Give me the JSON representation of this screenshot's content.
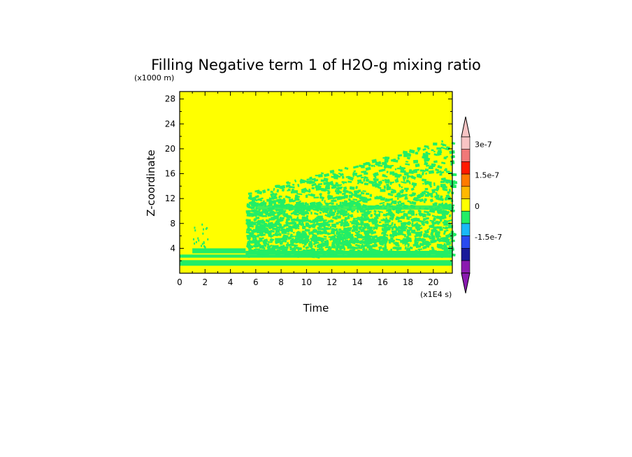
{
  "chart_data": {
    "type": "heatmap",
    "title": "Filling Negative term 1 of H2O-g mixing ratio",
    "xlabel": "Time",
    "ylabel": "Z-coordinate",
    "x_unit": "(x1E4 s)",
    "y_unit": "(x1000 m)",
    "xlim": [
      0,
      21.5
    ],
    "ylim": [
      0,
      29.2
    ],
    "x_ticks": [
      0,
      2,
      4,
      6,
      8,
      10,
      12,
      14,
      16,
      18,
      20
    ],
    "y_ticks": [
      4,
      8,
      12,
      16,
      20,
      24,
      28
    ],
    "background_value_color": "#ffff00",
    "pattern_color": "#22ee66",
    "colorbar": {
      "levels": [
        {
          "color": "#8a1ab0"
        },
        {
          "color": "#1a1a9a"
        },
        {
          "color": "#2a4af0"
        },
        {
          "color": "#1ab8f8"
        },
        {
          "color": "#22ee66"
        },
        {
          "color": "#ffff00"
        },
        {
          "color": "#ffb800"
        },
        {
          "color": "#ff7a00"
        },
        {
          "color": "#ff1a00"
        },
        {
          "color": "#f07878"
        },
        {
          "color": "#f8c4c4"
        }
      ],
      "under_color": "#8a1ab0",
      "over_color": "#f8c4c4",
      "labels": [
        "3e-7",
        "1.5e-7",
        "0",
        "-1.5e-7"
      ],
      "label_values": [
        3,
        1.5,
        0,
        -1.5
      ]
    },
    "features": [
      {
        "description_free": true,
        "t_start": 0,
        "t_end": 21.5,
        "z_low": 1.2,
        "z_high": 3.0
      },
      {
        "t_start": 1.0,
        "t_end": 5.2,
        "z_low": 3.0,
        "z_high": 4.0
      },
      {
        "t_start": 5.2,
        "t_end": 21.5,
        "z_low": 3.0,
        "z_high": 22.0
      }
    ]
  }
}
